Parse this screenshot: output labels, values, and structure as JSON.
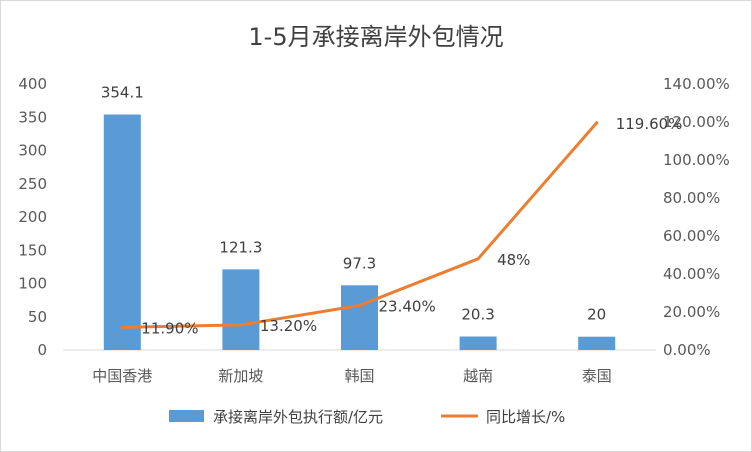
{
  "chart_data": {
    "type": "bar+line",
    "title": "1-5月承接离岸外包情况",
    "categories": [
      "中国香港",
      "新加坡",
      "韩国",
      "越南",
      "泰国"
    ],
    "series": [
      {
        "name": "承接离岸外包执行额/亿元",
        "type": "bar",
        "axis": "left",
        "color": "#5b9bd5",
        "values": [
          354.1,
          121.3,
          97.3,
          20.3,
          20
        ],
        "labels": [
          "354.1",
          "121.3",
          "97.3",
          "20.3",
          "20"
        ]
      },
      {
        "name": "同比增长/%",
        "type": "line",
        "axis": "right",
        "color": "#ed7d31",
        "values": [
          11.9,
          13.2,
          23.4,
          48,
          119.6
        ],
        "labels": [
          "11.90%",
          "13.20%",
          "23.40%",
          "48%",
          "119.60%"
        ]
      }
    ],
    "y_left": {
      "min": 0,
      "max": 400,
      "ticks": [
        "0",
        "50",
        "100",
        "150",
        "200",
        "250",
        "300",
        "350",
        "400"
      ]
    },
    "y_right": {
      "min": 0,
      "max": 140,
      "ticks": [
        "0.00%",
        "20.00%",
        "40.00%",
        "60.00%",
        "80.00%",
        "100.00%",
        "120.00%",
        "140.00%"
      ]
    },
    "grid": false,
    "legend_position": "bottom"
  }
}
